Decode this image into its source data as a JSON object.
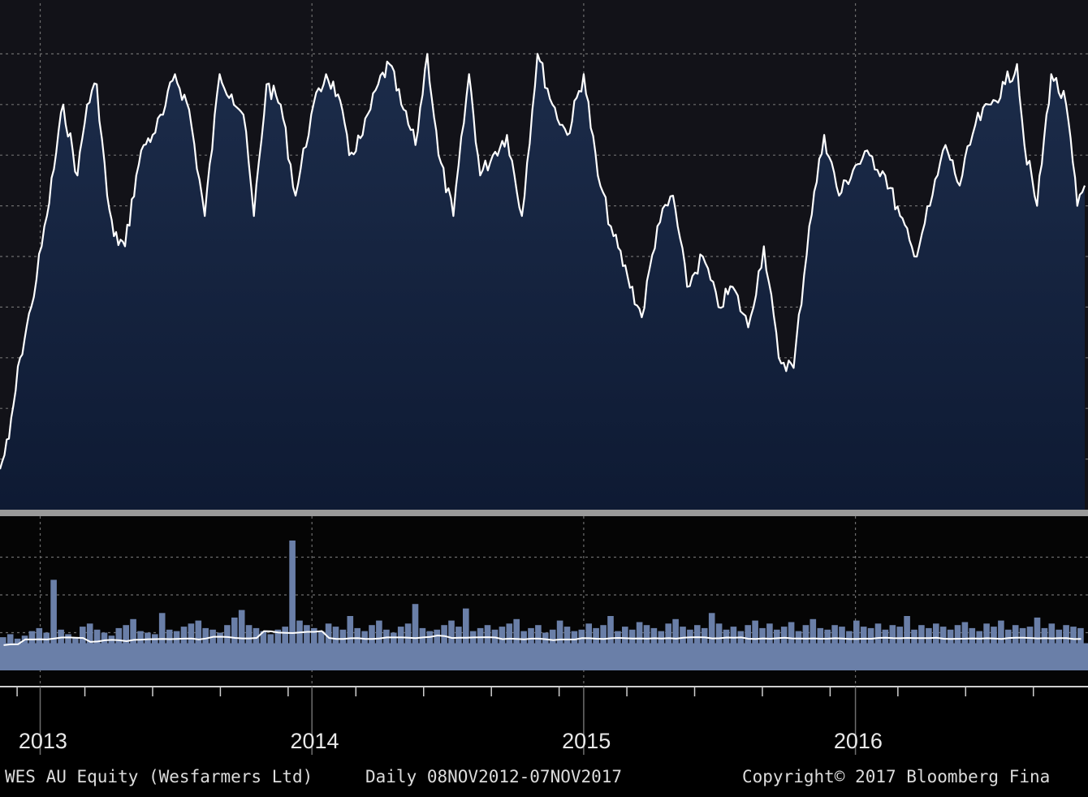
{
  "footer": {
    "security": "WES AU Equity (Wesfarmers Ltd)",
    "period": "Daily 08NOV2012-07NOV2017",
    "copyright": "Copyright© 2017 Bloomberg Fina"
  },
  "colors": {
    "background": "#000000",
    "price_panel_bg": "#121218",
    "price_fill_top": "#1c2c4a",
    "price_fill_bottom": "#0e1a33",
    "price_line": "#ffffff",
    "volume_bar": "#6a7fa8",
    "volume_avg_line": "#ffffff",
    "grid": "#6d6d6d",
    "separator": "#9a9a9a"
  },
  "chart_data": [
    {
      "type": "area",
      "title": "",
      "xlabel": "",
      "ylabel": "",
      "grid": true,
      "x_domain": [
        "2012-11-08",
        "2016-11-04"
      ],
      "x_tick_labels": [
        "2013",
        "2014",
        "2015",
        "2016"
      ],
      "x_tick_dates": [
        "2013-01-01",
        "2014-01-01",
        "2015-01-01",
        "2016-01-01"
      ],
      "y_range": [
        0,
        100
      ],
      "y_grid_values": [
        10,
        20,
        30,
        40,
        50,
        60,
        70,
        80,
        90
      ],
      "series": [
        {
          "x": [
            "2012-11-08",
            "2012-11-20",
            "2012-12-05",
            "2012-12-20",
            "2013-01-10",
            "2013-02-01",
            "2013-02-20",
            "2013-03-05",
            "2013-03-18",
            "2013-04-01",
            "2013-04-10",
            "2013-04-25",
            "2013-05-10",
            "2013-05-20",
            "2013-06-01",
            "2013-06-15",
            "2013-07-01",
            "2013-07-20",
            "2013-08-10",
            "2013-08-30",
            "2013-09-15",
            "2013-10-01",
            "2013-10-15",
            "2013-11-01",
            "2013-11-20",
            "2013-12-10",
            "2013-12-31",
            "2014-01-20",
            "2014-02-05",
            "2014-02-20",
            "2014-03-10",
            "2014-03-31",
            "2014-04-15",
            "2014-05-01",
            "2014-05-20",
            "2014-06-05",
            "2014-06-20",
            "2014-07-10",
            "2014-07-31",
            "2014-08-15",
            "2014-09-01",
            "2014-09-20",
            "2014-10-10",
            "2014-10-31",
            "2014-11-20",
            "2014-12-10",
            "2015-01-01",
            "2015-01-20",
            "2015-02-10",
            "2015-03-01",
            "2015-03-20",
            "2015-04-10",
            "2015-05-01",
            "2015-05-20",
            "2015-06-10",
            "2015-07-01",
            "2015-07-20",
            "2015-08-10",
            "2015-08-31",
            "2015-09-20",
            "2015-10-10",
            "2015-10-31",
            "2015-11-20",
            "2015-12-10",
            "2016-01-01",
            "2016-01-20",
            "2016-02-10",
            "2016-03-01",
            "2016-03-20",
            "2016-04-10",
            "2016-05-01",
            "2016-05-20",
            "2016-06-10",
            "2016-07-01",
            "2016-07-20",
            "2016-08-05",
            "2016-08-15",
            "2016-09-01",
            "2016-09-20",
            "2016-10-10",
            "2016-10-25",
            "2016-11-04"
          ],
          "y": [
            8,
            14,
            30,
            40,
            58,
            80,
            66,
            80,
            84,
            62,
            54,
            52,
            66,
            72,
            74,
            78,
            86,
            79,
            58,
            86,
            82,
            78,
            58,
            84,
            80,
            62,
            78,
            86,
            82,
            70,
            74,
            84,
            88,
            80,
            72,
            90,
            70,
            58,
            86,
            66,
            70,
            74,
            58,
            90,
            80,
            74,
            86,
            66,
            54,
            46,
            38,
            56,
            62,
            44,
            50,
            40,
            44,
            36,
            52,
            30,
            28,
            56,
            74,
            62,
            68,
            70,
            66,
            58,
            50,
            60,
            72,
            64,
            76,
            80,
            84,
            88,
            72,
            60,
            86,
            80,
            60,
            64
          ],
          "name": ""
        }
      ]
    },
    {
      "type": "bar",
      "title": "",
      "xlabel": "",
      "ylabel": "",
      "grid": true,
      "y_range": [
        0,
        100
      ],
      "y_grid_values": [
        25,
        50,
        75
      ],
      "note_series": "daily volume bars with moving-average line",
      "series": [
        {
          "name": "",
          "values": [
            22,
            24,
            21,
            23,
            26,
            28,
            25,
            60,
            27,
            24,
            22,
            29,
            31,
            27,
            25,
            23,
            28,
            30,
            34,
            26,
            25,
            24,
            38,
            27,
            26,
            29,
            31,
            33,
            28,
            27,
            25,
            30,
            35,
            40,
            30,
            28,
            26,
            24,
            27,
            29,
            86,
            33,
            30,
            28,
            26,
            31,
            29,
            27,
            36,
            28,
            26,
            30,
            33,
            27,
            25,
            29,
            31,
            44,
            28,
            26,
            27,
            30,
            33,
            29,
            41,
            26,
            28,
            30,
            27,
            29,
            31,
            34,
            26,
            28,
            30,
            25,
            27,
            33,
            29,
            26,
            27,
            31,
            28,
            30,
            36,
            26,
            29,
            27,
            32,
            30,
            28,
            26,
            31,
            34,
            29,
            27,
            30,
            28,
            38,
            31,
            27,
            29,
            26,
            30,
            33,
            28,
            31,
            27,
            29,
            32,
            26,
            30,
            34,
            28,
            27,
            30,
            29,
            26,
            33,
            29,
            28,
            31,
            27,
            30,
            29,
            36,
            27,
            30,
            28,
            31,
            29,
            27,
            30,
            32,
            28,
            26,
            31,
            29,
            33,
            27,
            30,
            28,
            29,
            35,
            28,
            31,
            27,
            30,
            29,
            28
          ]
        }
      ]
    }
  ]
}
